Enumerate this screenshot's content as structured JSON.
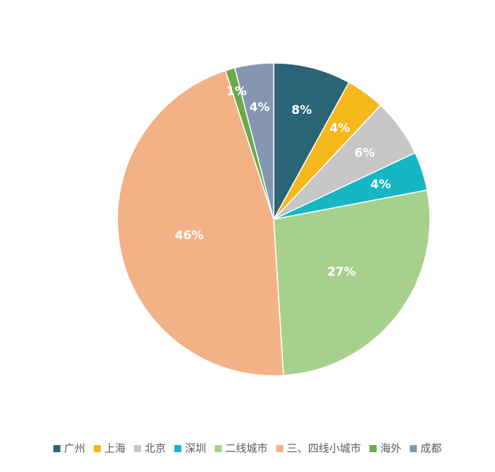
{
  "chart_data": {
    "type": "pie",
    "categories": [
      "广州",
      "上海",
      "北京",
      "深圳",
      "二线城市",
      "三、四线小城市",
      "海外",
      "成都"
    ],
    "values": [
      8,
      4,
      6,
      4,
      27,
      46,
      1,
      4
    ],
    "value_labels": [
      "8%",
      "4%",
      "6%",
      "4%",
      "27%",
      "46%",
      "1%",
      "4%"
    ],
    "colors": [
      "#2a6577",
      "#f5b81c",
      "#c6c6c6",
      "#17b6c4",
      "#a7d08c",
      "#f2b285",
      "#6aaa4a",
      "#8596b0"
    ],
    "legend": "bottom"
  }
}
